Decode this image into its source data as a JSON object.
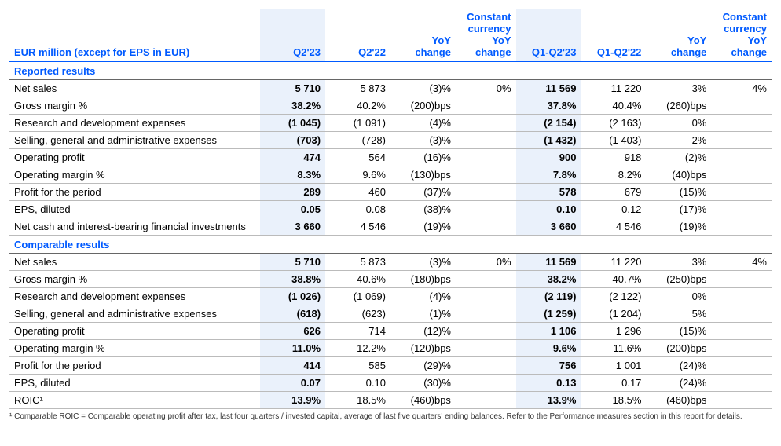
{
  "colors": {
    "accent": "#005aff",
    "highlight_bg": "#eaf1fb",
    "row_border": "#bbbbbb",
    "section_border": "#666666",
    "text": "#000000",
    "footnote": "#333333"
  },
  "header": {
    "label": "EUR million (except for EPS in EUR)",
    "cols": [
      "Q2'23",
      "Q2'22",
      "YoY\nchange",
      "Constant\ncurrency\nYoY\nchange",
      "Q1-Q2'23",
      "Q1-Q2'22",
      "YoY\nchange",
      "Constant\ncurrency\nYoY\nchange"
    ]
  },
  "sections": [
    {
      "title": "Reported results",
      "rows": [
        {
          "label": "Net sales",
          "c": [
            "5 710",
            "5 873",
            "(3)%",
            "0%",
            "11 569",
            "11 220",
            "3%",
            "4%"
          ]
        },
        {
          "label": "Gross margin %",
          "c": [
            "38.2%",
            "40.2%",
            "(200)bps",
            "",
            "37.8%",
            "40.4%",
            "(260)bps",
            ""
          ]
        },
        {
          "label": "Research and development expenses",
          "c": [
            "(1 045)",
            "(1 091)",
            "(4)%",
            "",
            "(2 154)",
            "(2 163)",
            "0%",
            ""
          ]
        },
        {
          "label": "Selling, general and administrative expenses",
          "c": [
            "(703)",
            "(728)",
            "(3)%",
            "",
            "(1 432)",
            "(1 403)",
            "2%",
            ""
          ]
        },
        {
          "label": "Operating profit",
          "c": [
            "474",
            "564",
            "(16)%",
            "",
            "900",
            "918",
            "(2)%",
            ""
          ]
        },
        {
          "label": "Operating margin %",
          "c": [
            "8.3%",
            "9.6%",
            "(130)bps",
            "",
            "7.8%",
            "8.2%",
            "(40)bps",
            ""
          ]
        },
        {
          "label": "Profit for the period",
          "c": [
            "289",
            "460",
            "(37)%",
            "",
            "578",
            "679",
            "(15)%",
            ""
          ]
        },
        {
          "label": "EPS, diluted",
          "c": [
            "0.05",
            "0.08",
            "(38)%",
            "",
            "0.10",
            "0.12",
            "(17)%",
            ""
          ]
        },
        {
          "label": "Net cash and interest-bearing financial investments",
          "c": [
            "3 660",
            "4 546",
            "(19)%",
            "",
            "3 660",
            "4 546",
            "(19)%",
            ""
          ]
        }
      ]
    },
    {
      "title": "Comparable results",
      "rows": [
        {
          "label": "Net sales",
          "c": [
            "5 710",
            "5 873",
            "(3)%",
            "0%",
            "11 569",
            "11 220",
            "3%",
            "4%"
          ]
        },
        {
          "label": "Gross margin %",
          "c": [
            "38.8%",
            "40.6%",
            "(180)bps",
            "",
            "38.2%",
            "40.7%",
            "(250)bps",
            ""
          ]
        },
        {
          "label": "Research and development expenses",
          "c": [
            "(1 026)",
            "(1 069)",
            "(4)%",
            "",
            "(2 119)",
            "(2 122)",
            "0%",
            ""
          ]
        },
        {
          "label": "Selling, general and administrative expenses",
          "c": [
            "(618)",
            "(623)",
            "(1)%",
            "",
            "(1 259)",
            "(1 204)",
            "5%",
            ""
          ]
        },
        {
          "label": "Operating profit",
          "c": [
            "626",
            "714",
            "(12)%",
            "",
            "1 106",
            "1 296",
            "(15)%",
            ""
          ]
        },
        {
          "label": "Operating margin %",
          "c": [
            "11.0%",
            "12.2%",
            "(120)bps",
            "",
            "9.6%",
            "11.6%",
            "(200)bps",
            ""
          ]
        },
        {
          "label": "Profit for the period",
          "c": [
            "414",
            "585",
            "(29)%",
            "",
            "756",
            "1 001",
            "(24)%",
            ""
          ]
        },
        {
          "label": "EPS, diluted",
          "c": [
            "0.07",
            "0.10",
            "(30)%",
            "",
            "0.13",
            "0.17",
            "(24)%",
            ""
          ]
        },
        {
          "label": "ROIC¹",
          "c": [
            "13.9%",
            "18.5%",
            "(460)bps",
            "",
            "13.9%",
            "18.5%",
            "(460)bps",
            ""
          ]
        }
      ]
    }
  ],
  "highlight_cols": [
    0,
    4
  ],
  "bold_cols": [
    0,
    4
  ],
  "footnote": "¹ Comparable ROIC = Comparable operating profit after tax, last four quarters / invested capital, average of last five quarters' ending balances. Refer to the Performance measures section in this report for details."
}
